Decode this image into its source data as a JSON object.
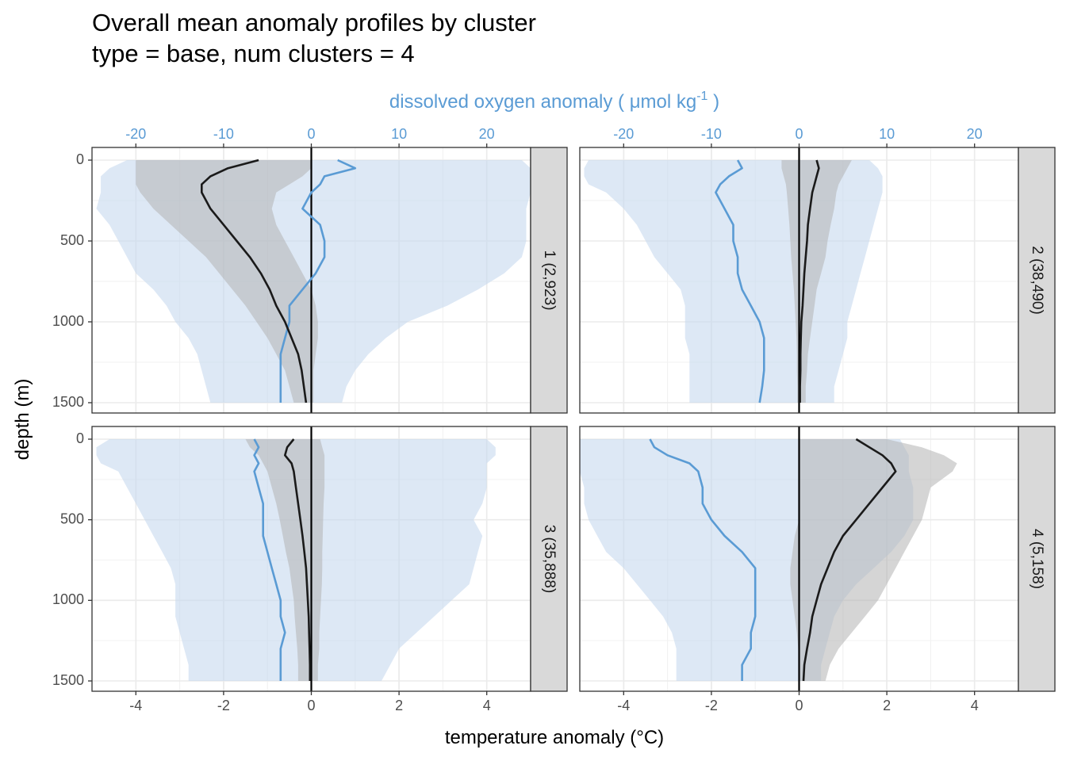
{
  "title": "Overall mean anomaly profiles by cluster",
  "subtitle": "type = base, num clusters = 4",
  "chart_data": {
    "type": "line",
    "title": "Overall mean anomaly profiles by cluster",
    "subtitle": "type = base, num clusters = 4",
    "xlabel": "temperature anomaly (°C)",
    "x2label_prefix": "dissolved oxygen anomaly ( μmol kg",
    "x2label_sup": "-1",
    "x2label_suffix": " )",
    "ylabel": "depth (m)",
    "xlim": [
      -5,
      5
    ],
    "x2lim": [
      -25,
      25
    ],
    "ylim_reversed": [
      1500,
      0
    ],
    "x_ticks": [
      "-4",
      "-2",
      "0",
      "2",
      "4"
    ],
    "x2_ticks": [
      "-20",
      "-10",
      "0",
      "10",
      "20"
    ],
    "y_ticks": [
      "0",
      "500",
      "1000",
      "1500"
    ],
    "grid": true,
    "series_colors": {
      "temperature": "#1a1a1a",
      "oxygen": "#5a9bd4",
      "temperature_band": "#b3b3b3",
      "oxygen_band": "#c6d9ef"
    },
    "panels": [
      {
        "label": "1 (2,923)",
        "depth": [
          0,
          50,
          100,
          150,
          200,
          300,
          400,
          500,
          600,
          700,
          800,
          900,
          1000,
          1100,
          1200,
          1300,
          1400,
          1500
        ],
        "temperature_mean": [
          -1.2,
          -1.9,
          -2.3,
          -2.5,
          -2.5,
          -2.3,
          -2.0,
          -1.7,
          -1.4,
          -1.15,
          -0.95,
          -0.8,
          -0.6,
          -0.45,
          -0.3,
          -0.22,
          -0.17,
          -0.12
        ],
        "temperature_low": [
          -4.0,
          -4.0,
          -4.0,
          -4.0,
          -3.9,
          -3.6,
          -3.2,
          -2.8,
          -2.4,
          -2.1,
          -1.8,
          -1.5,
          -1.25,
          -1.0,
          -0.8,
          -0.6,
          -0.5,
          -0.4
        ],
        "temperature_high": [
          0.0,
          0.0,
          -0.2,
          -0.5,
          -0.8,
          -0.9,
          -0.8,
          -0.6,
          -0.4,
          -0.2,
          0.0,
          0.1,
          0.15,
          0.15,
          0.1,
          0.05,
          0.05,
          0.05
        ],
        "oxygen_mean": [
          3.0,
          5.0,
          1.5,
          1.0,
          0.0,
          -1.0,
          1.0,
          1.5,
          1.5,
          0.5,
          -1.0,
          -2.5,
          -2.5,
          -3.0,
          -3.5,
          -3.5,
          -3.5,
          -3.5
        ],
        "oxygen_low": [
          -21.0,
          -23.0,
          -24.0,
          -24.0,
          -24.0,
          -24.5,
          -23.0,
          -22.0,
          -21.0,
          -20.0,
          -18.0,
          -16.5,
          -15.5,
          -14.0,
          -13.0,
          -12.5,
          -12.0,
          -11.5
        ],
        "oxygen_high": [
          24.0,
          25.0,
          25.0,
          25.0,
          25.0,
          24.5,
          24.5,
          24.5,
          24.0,
          22.0,
          19.0,
          15.5,
          11.0,
          8.5,
          6.5,
          5.0,
          4.0,
          3.5
        ]
      },
      {
        "label": "2 (38,490)",
        "depth": [
          0,
          50,
          100,
          150,
          200,
          300,
          400,
          500,
          600,
          700,
          800,
          900,
          1000,
          1100,
          1200,
          1300,
          1400,
          1500
        ],
        "temperature_mean": [
          0.4,
          0.45,
          0.4,
          0.35,
          0.3,
          0.25,
          0.2,
          0.18,
          0.15,
          0.12,
          0.1,
          0.08,
          0.05,
          0.04,
          0.03,
          0.03,
          0.02,
          0.02
        ],
        "temperature_low": [
          -0.4,
          -0.4,
          -0.35,
          -0.3,
          -0.28,
          -0.25,
          -0.22,
          -0.2,
          -0.18,
          -0.15,
          -0.12,
          -0.1,
          -0.08,
          -0.06,
          -0.05,
          -0.05,
          -0.04,
          -0.04
        ],
        "temperature_high": [
          1.2,
          1.1,
          1.0,
          0.9,
          0.85,
          0.8,
          0.72,
          0.65,
          0.6,
          0.5,
          0.4,
          0.35,
          0.3,
          0.25,
          0.2,
          0.18,
          0.15,
          0.15
        ],
        "oxygen_mean": [
          -7.0,
          -6.5,
          -8.0,
          -9.0,
          -9.5,
          -8.5,
          -7.5,
          -7.5,
          -7.0,
          -7.0,
          -6.5,
          -5.5,
          -4.5,
          -4.0,
          -4.0,
          -4.0,
          -4.2,
          -4.5
        ],
        "oxygen_low": [
          -24.0,
          -24.5,
          -24.5,
          -24.0,
          -22.0,
          -20.0,
          -18.5,
          -17.5,
          -16.5,
          -15.0,
          -13.5,
          -13.0,
          -13.0,
          -13.0,
          -12.5,
          -12.5,
          -12.5,
          -12.5
        ],
        "oxygen_high": [
          8.0,
          9.0,
          9.5,
          9.5,
          9.5,
          9.0,
          8.5,
          8.0,
          7.5,
          7.0,
          6.5,
          6.0,
          5.5,
          5.5,
          5.0,
          4.5,
          4.0,
          4.0
        ]
      },
      {
        "label": "3 (35,888)",
        "depth": [
          0,
          50,
          100,
          150,
          200,
          300,
          400,
          500,
          600,
          700,
          800,
          900,
          1000,
          1100,
          1200,
          1300,
          1400,
          1500
        ],
        "temperature_mean": [
          -0.4,
          -0.55,
          -0.6,
          -0.45,
          -0.4,
          -0.35,
          -0.3,
          -0.25,
          -0.2,
          -0.16,
          -0.12,
          -0.1,
          -0.08,
          -0.06,
          -0.05,
          -0.04,
          -0.03,
          -0.03
        ],
        "temperature_low": [
          -1.5,
          -1.4,
          -1.2,
          -1.1,
          -1.0,
          -0.9,
          -0.8,
          -0.72,
          -0.65,
          -0.58,
          -0.5,
          -0.45,
          -0.4,
          -0.38,
          -0.35,
          -0.32,
          -0.3,
          -0.3
        ],
        "temperature_high": [
          0.2,
          0.25,
          0.3,
          0.3,
          0.3,
          0.3,
          0.28,
          0.27,
          0.26,
          0.25,
          0.25,
          0.24,
          0.22,
          0.2,
          0.18,
          0.18,
          0.15,
          0.15
        ],
        "oxygen_mean": [
          -6.5,
          -6.0,
          -6.5,
          -6.0,
          -6.5,
          -6.0,
          -5.5,
          -5.5,
          -5.5,
          -5.0,
          -4.5,
          -4.0,
          -3.5,
          -3.5,
          -3.0,
          -3.5,
          -3.5,
          -3.5
        ],
        "oxygen_low": [
          -23.0,
          -24.5,
          -24.5,
          -24.0,
          -22.0,
          -21.0,
          -20.0,
          -19.0,
          -18.0,
          -17.0,
          -16.0,
          -15.5,
          -15.5,
          -15.5,
          -15.0,
          -14.5,
          -14.0,
          -14.0
        ],
        "oxygen_high": [
          20.0,
          21.0,
          21.0,
          20.0,
          20.0,
          20.0,
          19.5,
          18.5,
          19.5,
          19.0,
          18.5,
          18.0,
          16.0,
          14.0,
          12.0,
          10.0,
          9.0,
          8.0
        ]
      },
      {
        "label": "4 (5,158)",
        "depth": [
          0,
          50,
          100,
          150,
          200,
          300,
          400,
          500,
          600,
          700,
          800,
          900,
          1000,
          1100,
          1200,
          1300,
          1400,
          1500
        ],
        "temperature_mean": [
          1.3,
          1.6,
          1.9,
          2.1,
          2.2,
          1.9,
          1.6,
          1.3,
          1.0,
          0.8,
          0.65,
          0.5,
          0.4,
          0.3,
          0.25,
          0.18,
          0.12,
          0.1
        ],
        "temperature_low": [
          0.0,
          0.0,
          0.0,
          0.0,
          0.0,
          0.0,
          0.0,
          0.0,
          -0.1,
          -0.15,
          -0.2,
          -0.2,
          -0.15,
          -0.1,
          -0.05,
          -0.02,
          0.0,
          0.0
        ],
        "temperature_high": [
          2.0,
          2.8,
          3.3,
          3.6,
          3.5,
          3.0,
          2.9,
          2.8,
          2.6,
          2.4,
          2.2,
          2.0,
          1.8,
          1.5,
          1.2,
          0.9,
          0.7,
          0.6
        ],
        "oxygen_mean": [
          -17.0,
          -16.5,
          -15.0,
          -12.5,
          -11.5,
          -11.0,
          -11.0,
          -10.0,
          -8.5,
          -6.5,
          -5.0,
          -5.0,
          -5.0,
          -5.0,
          -5.5,
          -5.5,
          -6.5,
          -6.5
        ],
        "oxygen_low": [
          -25.0,
          -25.0,
          -25.0,
          -25.0,
          -25.0,
          -24.5,
          -24.5,
          -24.0,
          -23.0,
          -22.0,
          -20.0,
          -18.5,
          -17.0,
          -15.5,
          -14.5,
          -14.0,
          -14.0,
          -14.0
        ],
        "oxygen_high": [
          11.5,
          12.0,
          12.5,
          12.5,
          12.5,
          13.0,
          13.0,
          13.0,
          12.0,
          10.5,
          8.5,
          6.5,
          5.0,
          4.0,
          3.5,
          3.0,
          2.5,
          2.5
        ]
      }
    ]
  }
}
